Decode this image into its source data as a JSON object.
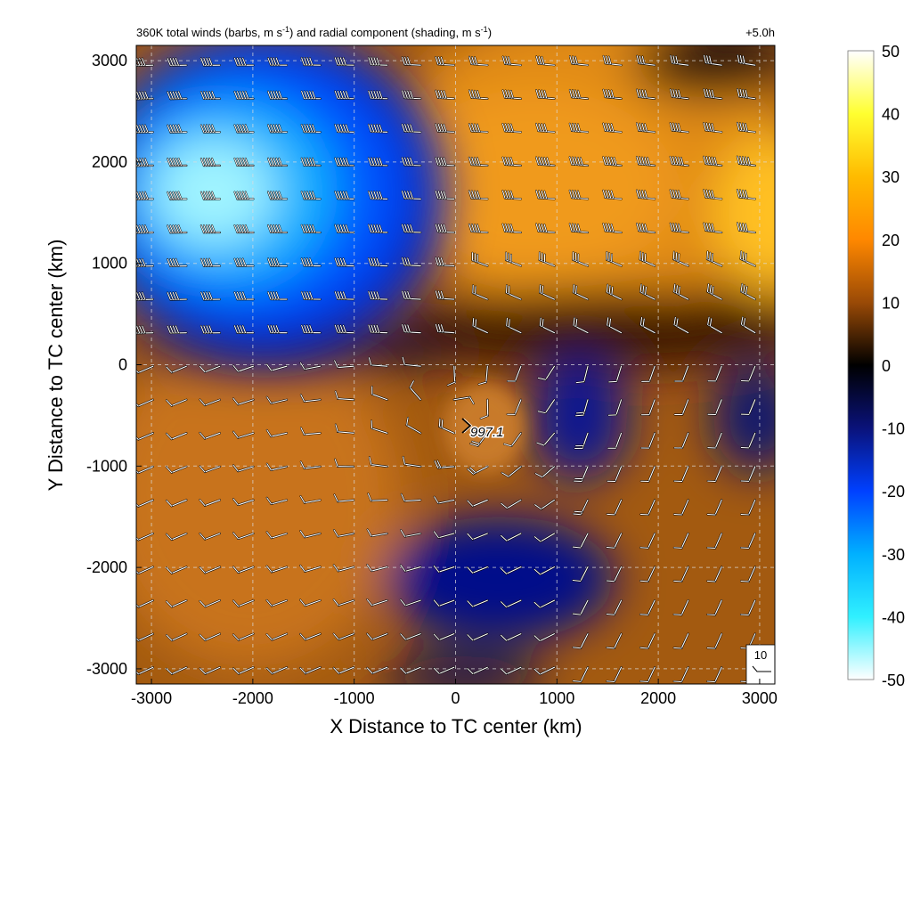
{
  "title_left_parts": {
    "a": "360K total winds (barbs, m s",
    "b": "-1",
    "c": ") and radial component (shading, m s",
    "d": "-1",
    "e": ")"
  },
  "title_right": "+5.0h",
  "center_label": "997.1",
  "chart_data": {
    "type": "heatmap",
    "title": "360K total winds (barbs, m s-1) and radial component (shading, m s-1)",
    "lead_time": "+5.0h",
    "xlabel": "X Distance to TC center (km)",
    "ylabel": "Y Distance to TC center (km)",
    "xlim": [
      -3150,
      3150
    ],
    "ylim": [
      -3150,
      3150
    ],
    "x_ticks": [
      -3000,
      -2000,
      -1000,
      0,
      1000,
      2000,
      3000
    ],
    "y_ticks": [
      -3000,
      -2000,
      -1000,
      0,
      1000,
      2000,
      3000
    ],
    "x_tick_labels": [
      "-3000",
      "-2000",
      "-1000",
      "0",
      "1000",
      "2000",
      "3000"
    ],
    "y_tick_labels": [
      "-3000",
      "-2000",
      "-1000",
      "0",
      "1000",
      "2000",
      "3000"
    ],
    "grid": true,
    "colorbar": {
      "range": [
        -50,
        50
      ],
      "ticks": [
        50,
        40,
        30,
        20,
        10,
        0,
        -10,
        -20,
        -30,
        -40,
        -50
      ],
      "tick_labels": [
        "50",
        "40",
        "30",
        "20",
        "10",
        "0",
        "-10",
        "-20",
        "-30",
        "-40",
        "-50"
      ],
      "placement": "right"
    },
    "radial_wind_regions": [
      {
        "region": "northwest",
        "center": [
          -2300,
          1900
        ],
        "peak_value": -45
      },
      {
        "region": "northeast",
        "center": [
          1100,
          2150
        ],
        "peak_value": 22
      },
      {
        "region": "east",
        "center": [
          3050,
          1450
        ],
        "peak_value": 32
      },
      {
        "region": "southwest",
        "center": [
          -2000,
          -1500
        ],
        "peak_value": 12
      },
      {
        "region": "south",
        "center": [
          600,
          -1800
        ],
        "peak_value": -8
      },
      {
        "region": "east-central",
        "center": [
          1200,
          -500
        ],
        "peak_value": -8
      }
    ],
    "barb_spacing_km": 330,
    "storm_center": {
      "x": 90,
      "y": -600,
      "value": 997.1
    },
    "reference_barb": {
      "label": "10",
      "placement": "bottom-right"
    }
  }
}
